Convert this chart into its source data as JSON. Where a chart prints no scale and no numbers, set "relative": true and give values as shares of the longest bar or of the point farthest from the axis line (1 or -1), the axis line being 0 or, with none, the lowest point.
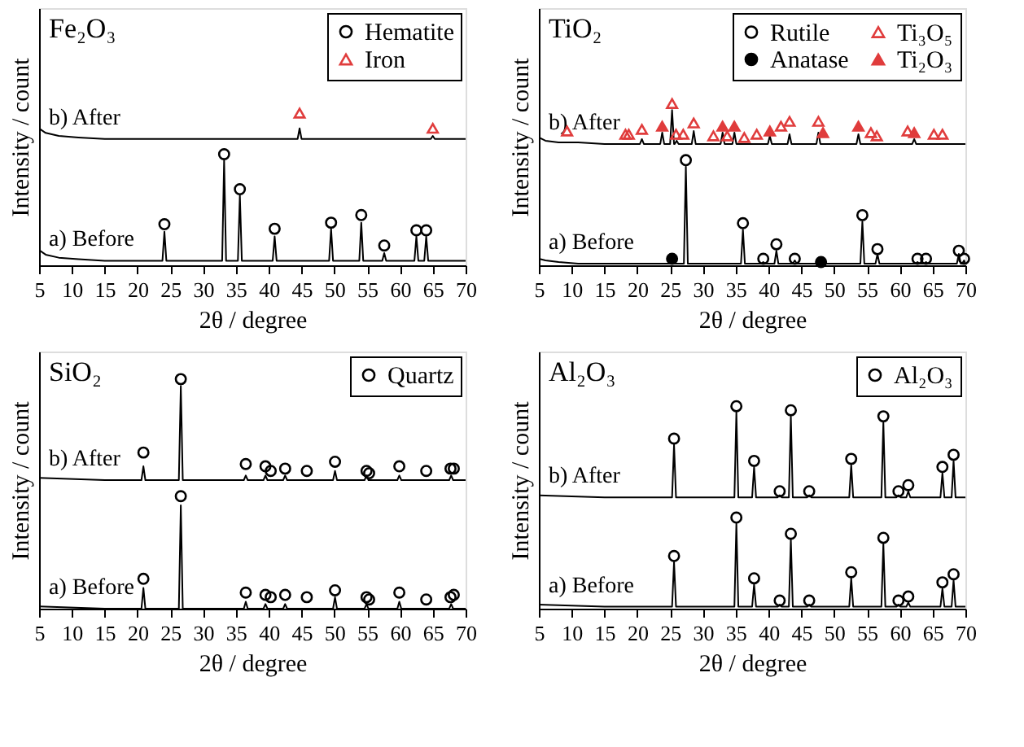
{
  "chart_data": [
    {
      "type": "line",
      "title": "Fe₂O₃",
      "xlabel": "2θ / degree",
      "ylabel": "Intensity / count",
      "relative": true,
      "xlim": [
        5,
        70
      ],
      "xticks": [
        5,
        10,
        15,
        20,
        25,
        30,
        35,
        40,
        45,
        50,
        55,
        60,
        65,
        70
      ],
      "grid": false,
      "legend": "top right",
      "series": [
        {
          "name": "a) Before",
          "color": "#000000",
          "x": [
            5,
            6,
            8,
            11,
            15,
            23.8,
            24.1,
            24.4,
            32.9,
            33.2,
            33.5,
            35.3,
            35.6,
            35.9,
            40.6,
            40.9,
            41.2,
            49.2,
            49.5,
            49.8,
            53.8,
            54.1,
            54.4,
            57.3,
            57.6,
            57.9,
            62.2,
            62.5,
            62.8,
            63.7,
            64.0,
            64.3,
            70
          ],
          "values": [
            0.1,
            0.07,
            0.05,
            0.04,
            0.03,
            0.03,
            0.22,
            0.03,
            0.03,
            0.69,
            0.03,
            0.03,
            0.46,
            0.03,
            0.03,
            0.19,
            0.03,
            0.03,
            0.24,
            0.03,
            0.03,
            0.28,
            0.03,
            0.03,
            0.08,
            0.03,
            0.03,
            0.19,
            0.03,
            0.03,
            0.19,
            0.03,
            0.03
          ]
        },
        {
          "name": "b) After",
          "color": "#000000",
          "x": [
            5,
            6,
            8,
            11,
            15,
            44.4,
            44.7,
            45.0,
            64.7,
            65.0,
            65.3,
            70
          ],
          "values": [
            0.9,
            0.87,
            0.85,
            0.84,
            0.83,
            0.83,
            0.9,
            0.83,
            0.83,
            0.85,
            0.83,
            0.83
          ]
        },
        {
          "type": "scatter",
          "name": "Hematite",
          "color": "#000000",
          "marker": "circle",
          "x": [
            24.1,
            33.2,
            35.6,
            40.9,
            49.5,
            54.1,
            57.6,
            62.5,
            64.0
          ],
          "values": [
            0.27,
            0.73,
            0.5,
            0.24,
            0.28,
            0.33,
            0.13,
            0.23,
            0.23
          ]
        },
        {
          "type": "scatter",
          "name": "Iron",
          "color": "#e03c3c",
          "marker": "triangle",
          "x": [
            44.7,
            65.0
          ],
          "values": [
            1.0,
            0.9
          ]
        }
      ]
    },
    {
      "type": "line",
      "title": "TiO₂",
      "xlabel": "2θ / degree",
      "ylabel": "Intensity / count",
      "relative": true,
      "xlim": [
        5,
        70
      ],
      "xticks": [
        5,
        10,
        15,
        20,
        25,
        30,
        35,
        40,
        45,
        50,
        55,
        60,
        65,
        70
      ],
      "grid": false,
      "legend": "top right",
      "series": [
        {
          "name": "a) Before",
          "color": "#000000",
          "x": [
            5,
            6,
            8,
            11,
            15,
            27.1,
            27.4,
            27.7,
            35.8,
            36.1,
            36.4,
            38.9,
            39.2,
            39.5,
            40.9,
            41.2,
            41.5,
            43.7,
            44.0,
            44.3,
            54.0,
            54.3,
            54.6,
            56.3,
            56.6,
            56.9,
            62.4,
            62.7,
            63.0,
            63.7,
            64.0,
            64.3,
            68.7,
            69.0,
            69.3,
            69.5,
            69.8,
            70
          ],
          "values": [
            0.04,
            0.03,
            0.02,
            0.01,
            0.01,
            0.01,
            0.61,
            0.01,
            0.01,
            0.22,
            0.01,
            0.01,
            0.02,
            0.01,
            0.01,
            0.09,
            0.01,
            0.01,
            0.03,
            0.01,
            0.01,
            0.27,
            0.01,
            0.01,
            0.07,
            0.01,
            0.01,
            0.02,
            0.01,
            0.01,
            0.02,
            0.01,
            0.01,
            0.07,
            0.01,
            0.01,
            0.03,
            0.01
          ]
        },
        {
          "name": "b) After",
          "color": "#000000",
          "x": [
            5,
            6,
            8,
            11,
            15,
            20.4,
            20.7,
            21.0,
            23.5,
            23.8,
            24.1,
            25.0,
            25.3,
            25.6,
            25.7,
            26.0,
            26.3,
            28.3,
            28.6,
            28.9,
            32.7,
            33.0,
            33.3,
            34.5,
            34.8,
            35.1,
            39.9,
            40.2,
            40.5,
            42.9,
            43.2,
            43.5,
            47.3,
            47.6,
            47.9,
            53.4,
            53.7,
            54.0,
            61.9,
            62.2,
            62.5,
            70
          ],
          "values": [
            0.79,
            0.77,
            0.76,
            0.76,
            0.75,
            0.75,
            0.78,
            0.75,
            0.75,
            0.82,
            0.75,
            0.75,
            0.96,
            0.75,
            0.75,
            0.77,
            0.75,
            0.75,
            0.83,
            0.75,
            0.75,
            0.82,
            0.75,
            0.75,
            0.82,
            0.75,
            0.75,
            0.8,
            0.75,
            0.75,
            0.81,
            0.75,
            0.75,
            0.82,
            0.75,
            0.75,
            0.81,
            0.75,
            0.75,
            0.78,
            0.75,
            0.75
          ]
        },
        {
          "type": "scatter",
          "name": "Rutile",
          "color": "#000000",
          "marker": "circle",
          "x": [
            27.4,
            36.1,
            39.2,
            41.2,
            44.0,
            54.3,
            56.6,
            62.7,
            64.0,
            69.0,
            69.8
          ],
          "values": [
            0.65,
            0.26,
            0.04,
            0.13,
            0.04,
            0.31,
            0.1,
            0.04,
            0.04,
            0.09,
            0.04
          ]
        },
        {
          "type": "scatter",
          "name": "Anatase",
          "color": "#000000",
          "marker": "circle",
          "x": [
            25.3,
            48.0
          ],
          "values": [
            0.04,
            0.02
          ]
        },
        {
          "type": "scatter",
          "name": "Ti₃O₅",
          "color": "#e03c3c",
          "marker": "triangle",
          "x": [
            9.3,
            18.2,
            18.7,
            20.7,
            25.3,
            25.9,
            27.0,
            28.6,
            31.6,
            33.7,
            36.3,
            38.2,
            41.9,
            43.2,
            47.6,
            55.6,
            56.5,
            61.2,
            65.2,
            66.5
          ],
          "values": [
            0.83,
            0.81,
            0.81,
            0.84,
            1.0,
            0.81,
            0.81,
            0.88,
            0.8,
            0.8,
            0.79,
            0.81,
            0.86,
            0.89,
            0.89,
            0.82,
            0.8,
            0.83,
            0.81,
            0.81
          ]
        },
        {
          "type": "scatter",
          "name": "Ti₂O₃",
          "color": "#e03c3c",
          "marker": "triangle",
          "x": [
            23.8,
            33.0,
            34.8,
            40.2,
            48.3,
            53.7,
            62.2
          ],
          "values": [
            0.86,
            0.86,
            0.86,
            0.83,
            0.82,
            0.86,
            0.82
          ]
        }
      ]
    },
    {
      "type": "line",
      "title": "SiO₂",
      "xlabel": "2θ / degree",
      "ylabel": "Intensity / count",
      "relative": true,
      "xlim": [
        5,
        70
      ],
      "xticks": [
        5,
        10,
        15,
        20,
        25,
        30,
        35,
        40,
        45,
        50,
        55,
        60,
        65,
        70
      ],
      "grid": false,
      "legend": "top right",
      "series": [
        {
          "name": "a) Before",
          "color": "#000000",
          "x": [
            5,
            15,
            20.6,
            20.9,
            21.2,
            26.3,
            26.6,
            26.9,
            36.2,
            36.5,
            36.8,
            39.2,
            39.5,
            39.8,
            42.2,
            42.5,
            42.8,
            49.8,
            50.1,
            50.4,
            54.6,
            54.9,
            55.2,
            59.6,
            59.9,
            60.2,
            67.5,
            67.8,
            68.1,
            70
          ],
          "values": [
            0.01,
            0,
            0,
            0.09,
            0,
            0,
            0.45,
            0,
            0,
            0.03,
            0,
            0,
            0.02,
            0,
            0,
            0.02,
            0,
            0,
            0.05,
            0,
            0,
            0.02,
            0,
            0,
            0.03,
            0,
            0,
            0.02,
            0,
            0
          ]
        },
        {
          "name": "b) After",
          "color": "#000000",
          "x": [
            5,
            15,
            20.6,
            20.9,
            21.2,
            26.3,
            26.6,
            26.9,
            36.2,
            36.5,
            36.8,
            39.2,
            39.5,
            39.8,
            42.2,
            42.5,
            42.8,
            49.8,
            50.1,
            50.4,
            54.6,
            54.9,
            55.2,
            59.6,
            59.9,
            60.2,
            67.5,
            67.8,
            68.1,
            70
          ],
          "values": [
            0.57,
            0.56,
            0.56,
            0.62,
            0.56,
            0.56,
            0.97,
            0.56,
            0.56,
            0.58,
            0.56,
            0.56,
            0.58,
            0.56,
            0.56,
            0.58,
            0.56,
            0.56,
            0.6,
            0.56,
            0.56,
            0.58,
            0.56,
            0.56,
            0.58,
            0.56,
            0.56,
            0.58,
            0.56,
            0.56
          ]
        },
        {
          "type": "scatter",
          "name": "Quartz",
          "color": "#000000",
          "marker": "circle",
          "x": [
            20.9,
            26.6,
            36.5,
            39.5,
            40.3,
            42.5,
            45.8,
            50.1,
            54.9,
            55.3,
            59.9,
            64.0,
            67.7,
            68.2,
            20.9,
            26.6,
            36.5,
            39.5,
            40.3,
            42.5,
            45.8,
            50.1,
            54.9,
            55.3,
            59.9,
            64.0,
            67.7,
            68.2
          ],
          "values": [
            0.13,
            0.49,
            0.07,
            0.06,
            0.05,
            0.06,
            0.05,
            0.08,
            0.05,
            0.04,
            0.07,
            0.04,
            0.05,
            0.06,
            0.68,
            1.0,
            0.63,
            0.62,
            0.6,
            0.61,
            0.6,
            0.64,
            0.6,
            0.59,
            0.62,
            0.6,
            0.61,
            0.61
          ]
        }
      ]
    },
    {
      "type": "line",
      "title": "Al₂O₃",
      "xlabel": "2θ / degree",
      "ylabel": "Intensity / count",
      "relative": true,
      "xlim": [
        5,
        70
      ],
      "xticks": [
        5,
        10,
        15,
        20,
        25,
        30,
        35,
        40,
        45,
        50,
        55,
        60,
        65,
        70
      ],
      "grid": false,
      "legend": "top right",
      "series": [
        {
          "name": "a) Before",
          "color": "#000000",
          "x": [
            5,
            15,
            25.3,
            25.6,
            25.9,
            34.8,
            35.1,
            35.4,
            37.5,
            37.8,
            38.1,
            41.4,
            41.7,
            42.0,
            43.1,
            43.4,
            43.7,
            45.9,
            46.2,
            46.5,
            52.3,
            52.6,
            52.9,
            57.2,
            57.5,
            57.8,
            59.5,
            59.8,
            60.1,
            61.0,
            61.3,
            61.6,
            66.2,
            66.5,
            66.8,
            67.9,
            68.2,
            68.5,
            70
          ],
          "values": [
            0.02,
            0.01,
            0.01,
            0.23,
            0.01,
            0.01,
            0.42,
            0.01,
            0.01,
            0.12,
            0.01,
            0.01,
            0.02,
            0.01,
            0.01,
            0.34,
            0.01,
            0.01,
            0.02,
            0.01,
            0.01,
            0.15,
            0.01,
            0.01,
            0.32,
            0.01,
            0.01,
            0.02,
            0.01,
            0.01,
            0.03,
            0.01,
            0.01,
            0.1,
            0.01,
            0.01,
            0.14,
            0.01,
            0.01
          ]
        },
        {
          "name": "b) After",
          "color": "#000000",
          "x": [
            5,
            15,
            25.3,
            25.6,
            25.9,
            34.8,
            35.1,
            35.4,
            37.5,
            37.8,
            38.1,
            41.4,
            41.7,
            42.0,
            43.1,
            43.4,
            43.7,
            45.9,
            46.2,
            46.5,
            52.3,
            52.6,
            52.9,
            57.2,
            57.5,
            57.8,
            59.5,
            59.8,
            60.1,
            61.0,
            61.3,
            61.6,
            66.2,
            66.5,
            66.8,
            67.9,
            68.2,
            68.5,
            70
          ],
          "values": [
            0.56,
            0.55,
            0.55,
            0.81,
            0.55,
            0.55,
            0.97,
            0.55,
            0.55,
            0.7,
            0.55,
            0.55,
            0.56,
            0.55,
            0.55,
            0.95,
            0.55,
            0.55,
            0.56,
            0.55,
            0.55,
            0.71,
            0.55,
            0.55,
            0.92,
            0.55,
            0.55,
            0.56,
            0.55,
            0.55,
            0.58,
            0.55,
            0.55,
            0.67,
            0.55,
            0.55,
            0.73,
            0.55,
            0.55
          ]
        },
        {
          "type": "scatter",
          "name": "Al₂O₃",
          "color": "#000000",
          "marker": "circle",
          "x": [
            25.6,
            35.1,
            37.8,
            41.7,
            43.4,
            46.2,
            52.6,
            57.5,
            59.8,
            61.3,
            66.5,
            68.2,
            25.6,
            35.1,
            37.8,
            41.7,
            43.4,
            46.2,
            52.6,
            57.5,
            59.8,
            61.3,
            66.5,
            68.2
          ],
          "values": [
            0.26,
            0.45,
            0.15,
            0.04,
            0.37,
            0.04,
            0.18,
            0.35,
            0.04,
            0.06,
            0.13,
            0.17,
            0.84,
            1.0,
            0.73,
            0.58,
            0.98,
            0.58,
            0.74,
            0.95,
            0.58,
            0.61,
            0.7,
            0.76
          ]
        }
      ]
    }
  ]
}
